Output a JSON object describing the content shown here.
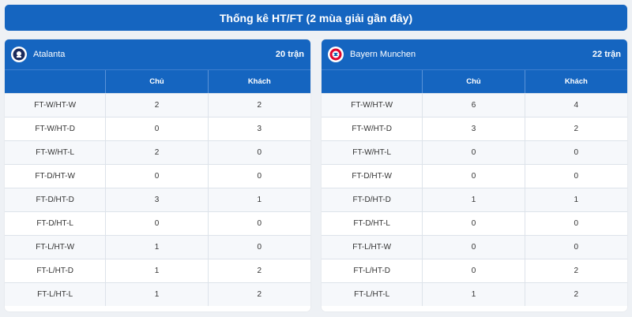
{
  "title": "Thống kê HT/FT (2 mùa giải gần đây)",
  "columns": {
    "label": "",
    "home": "Chủ",
    "away": "Khách"
  },
  "accent_color": "#1565c0",
  "teams": [
    {
      "name": "Atalanta",
      "count": "20 trận",
      "logo": "atalanta-logo",
      "rows": [
        {
          "label": "FT-W/HT-W",
          "home": "2",
          "away": "2"
        },
        {
          "label": "FT-W/HT-D",
          "home": "0",
          "away": "3"
        },
        {
          "label": "FT-W/HT-L",
          "home": "2",
          "away": "0"
        },
        {
          "label": "FT-D/HT-W",
          "home": "0",
          "away": "0"
        },
        {
          "label": "FT-D/HT-D",
          "home": "3",
          "away": "1"
        },
        {
          "label": "FT-D/HT-L",
          "home": "0",
          "away": "0"
        },
        {
          "label": "FT-L/HT-W",
          "home": "1",
          "away": "0"
        },
        {
          "label": "FT-L/HT-D",
          "home": "1",
          "away": "2"
        },
        {
          "label": "FT-L/HT-L",
          "home": "1",
          "away": "2"
        }
      ]
    },
    {
      "name": "Bayern Munchen",
      "count": "22 trận",
      "logo": "bayern-logo",
      "rows": [
        {
          "label": "FT-W/HT-W",
          "home": "6",
          "away": "4"
        },
        {
          "label": "FT-W/HT-D",
          "home": "3",
          "away": "2"
        },
        {
          "label": "FT-W/HT-L",
          "home": "0",
          "away": "0"
        },
        {
          "label": "FT-D/HT-W",
          "home": "0",
          "away": "0"
        },
        {
          "label": "FT-D/HT-D",
          "home": "1",
          "away": "1"
        },
        {
          "label": "FT-D/HT-L",
          "home": "0",
          "away": "0"
        },
        {
          "label": "FT-L/HT-W",
          "home": "0",
          "away": "0"
        },
        {
          "label": "FT-L/HT-D",
          "home": "0",
          "away": "2"
        },
        {
          "label": "FT-L/HT-L",
          "home": "1",
          "away": "2"
        }
      ]
    }
  ]
}
